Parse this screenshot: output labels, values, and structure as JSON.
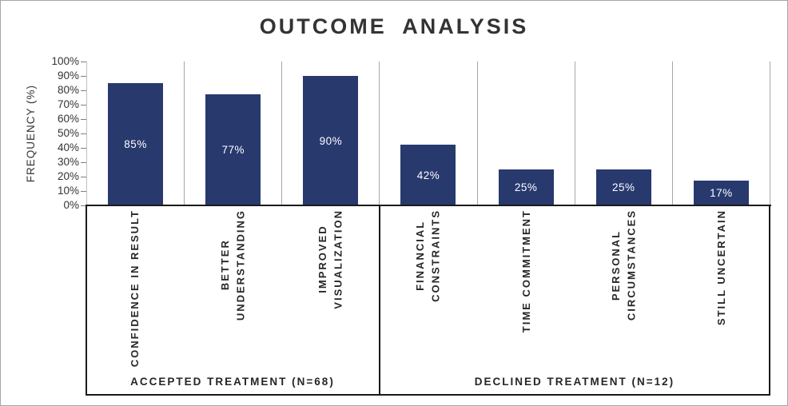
{
  "chart_data": {
    "type": "bar",
    "title": "OUTCOME ANALYSIS",
    "ylabel": "FREQUENCY (%)",
    "ylim": [
      0,
      100
    ],
    "ytick_step": 10,
    "ytick_labels": [
      "0%",
      "10%",
      "20%",
      "30%",
      "40%",
      "50%",
      "60%",
      "70%",
      "80%",
      "90%",
      "100%"
    ],
    "grid": {
      "horizontal_gridlines": false,
      "vertical_category_separators": true
    },
    "legend": {
      "visible": false
    },
    "bar_color": "#28396E",
    "bar_label_color": "#FFFFFF",
    "separator_color": "#A6A6A6",
    "axis_color": "#1A1A1A",
    "categories": [
      {
        "label": "CONFIDENCE IN RESULT",
        "value": 85,
        "value_label": "85%"
      },
      {
        "label": "BETTER\nUNDERSTANDING",
        "value": 77,
        "value_label": "77%"
      },
      {
        "label": "IMPROVED\nVISUALIZATION",
        "value": 90,
        "value_label": "90%"
      },
      {
        "label": "FINANCIAL\nCONSTRAINTS",
        "value": 42,
        "value_label": "42%"
      },
      {
        "label": "TIME COMMITMENT",
        "value": 25,
        "value_label": "25%"
      },
      {
        "label": "PERSONAL\nCIRCUMSTANCES",
        "value": 25,
        "value_label": "25%"
      },
      {
        "label": "STILL UNCERTAIN",
        "value": 17,
        "value_label": "17%"
      }
    ],
    "groups": [
      {
        "label": "ACCEPTED TREATMENT (N=68)",
        "category_indexes": [
          0,
          1,
          2
        ]
      },
      {
        "label": "DECLINED TREATMENT (N=12)",
        "category_indexes": [
          3,
          4,
          5,
          6
        ]
      }
    ]
  }
}
